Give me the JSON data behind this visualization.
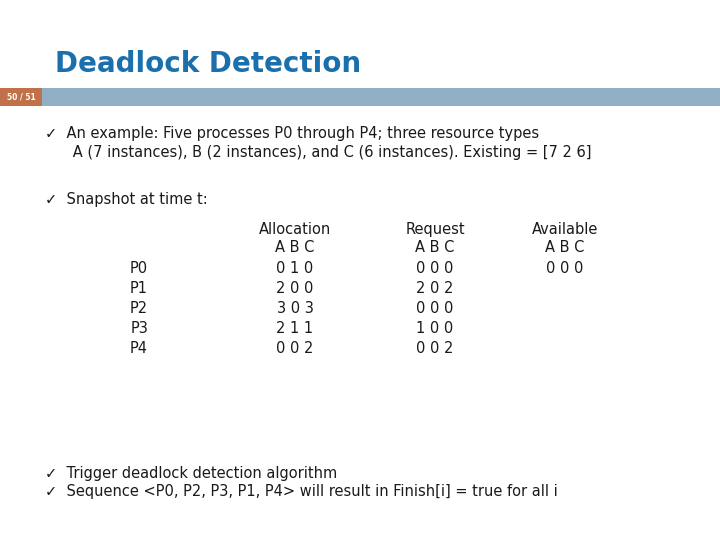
{
  "title": "Deadlock Detection",
  "title_color": "#1A6FAD",
  "slide_number": "50 / 51",
  "slide_number_bg": "#C0714A",
  "bar_color": "#90AFC5",
  "background_color": "#ffffff",
  "bullet1_line1": "✓  An example: Five processes P0 through P4; three resource types",
  "bullet1_line2": "      A (7 instances), B (2 instances), and C (6 instances). Existing = [7 2 6]",
  "bullet2": "✓  Snapshot at time t:",
  "table_header1": "Allocation",
  "table_header2": "Request",
  "table_header3": "Available",
  "table_sub": "A B C",
  "processes": [
    "P0",
    "P1",
    "P2",
    "P3",
    "P4"
  ],
  "allocation": [
    "0 1 0",
    "2 0 0",
    "3 0 3",
    "2 1 1",
    "0 0 2"
  ],
  "request": [
    "0 0 0",
    "2 0 2",
    "0 0 0",
    "1 0 0",
    "0 0 2"
  ],
  "available_p0": "0 0 0",
  "bullet3": "✓  Trigger deadlock detection algorithm",
  "bullet4": "✓  Sequence <P0, P2, P3, P1, P4> will result in Finish[i] = true for all i",
  "text_color": "#1a1a1a",
  "fontsize_title": 20,
  "fontsize_body": 10.5
}
